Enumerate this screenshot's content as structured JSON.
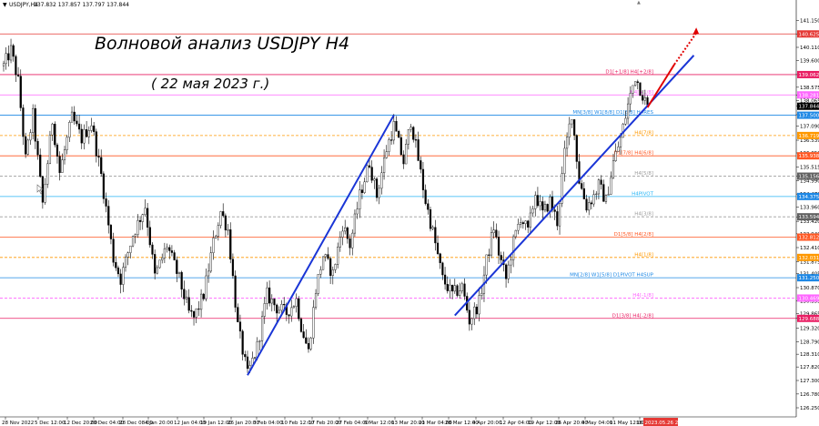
{
  "header": {
    "symbol_label": "USDJPY,H4",
    "ohlc": "137.832 137.857 137.797 137.844"
  },
  "annotation": {
    "title": "Волновой анализ USDJPY H4",
    "subtitle": "( 22 мая 2023 г.)"
  },
  "chart_data": {
    "type": "candlestick",
    "symbol": "USDJPY",
    "timeframe": "H4",
    "ylim": [
      126.25,
      141.65
    ],
    "y_ticks": [
      "141.150",
      "140.625",
      "140.110",
      "139.600",
      "139.062",
      "138.575",
      "138.281",
      "138.065",
      "137.844",
      "137.520",
      "137.090",
      "136.539",
      "136.050",
      "135.515",
      "135.156",
      "134.990",
      "134.470",
      "133.960",
      "133.584",
      "133.420",
      "132.940",
      "132.410",
      "131.875",
      "131.405",
      "130.870",
      "130.355",
      "129.865",
      "129.688",
      "129.320",
      "128.790",
      "128.310",
      "127.820",
      "127.300",
      "126.780",
      "126.250"
    ],
    "x_ticks": [
      "28 Nov 2022",
      "5 Dec 12:00",
      "12 Dec 20:00",
      "20 Dec 04:00",
      "28 Dec 08:00",
      "4 Jan 20:00",
      "12 Jan 04:00",
      "19 Jan 12:00",
      "26 Jan 20:00",
      "3 Feb 04:00",
      "10 Feb 12:00",
      "17 Feb 20:00",
      "27 Feb 04:00",
      "6 Mar 12:00",
      "13 Mar 20:00",
      "21 Mar 04:00",
      "28 Mar 12:00",
      "4 Apr 20:00",
      "12 Apr 04:00",
      "19 Apr 12:00",
      "26 Apr 20:00",
      "4 May 04:00",
      "11 May 12:00",
      "18 May 20:00",
      "2023.05.26 20:00"
    ],
    "current_price": "137.844",
    "price_path": [
      [
        0,
        139.4
      ],
      [
        3,
        140.0
      ],
      [
        6,
        138.8
      ],
      [
        9,
        135.8
      ],
      [
        12,
        137.5
      ],
      [
        16,
        134.1
      ],
      [
        20,
        137.3
      ],
      [
        23,
        135.3
      ],
      [
        28,
        137.4
      ],
      [
        32,
        136.6
      ],
      [
        36,
        137.2
      ],
      [
        40,
        135.2
      ],
      [
        45,
        132.0
      ],
      [
        48,
        131.2
      ],
      [
        53,
        132.9
      ],
      [
        58,
        134.0
      ],
      [
        62,
        131.3
      ],
      [
        67,
        132.5
      ],
      [
        72,
        131.2
      ],
      [
        76,
        129.9
      ],
      [
        78,
        129.7
      ],
      [
        82,
        130.6
      ],
      [
        86,
        132.6
      ],
      [
        89,
        133.8
      ],
      [
        92,
        133.1
      ],
      [
        96,
        129.4
      ],
      [
        100,
        127.5
      ],
      [
        104,
        128.6
      ],
      [
        108,
        130.6
      ],
      [
        112,
        130.1
      ],
      [
        116,
        129.9
      ],
      [
        120,
        130.4
      ],
      [
        122,
        129.4
      ],
      [
        125,
        128.4
      ],
      [
        128,
        130.8
      ],
      [
        131,
        132.1
      ],
      [
        135,
        131.4
      ],
      [
        139,
        133.3
      ],
      [
        142,
        132.5
      ],
      [
        146,
        134.4
      ],
      [
        150,
        135.7
      ],
      [
        153,
        134.4
      ],
      [
        157,
        136.2
      ],
      [
        160,
        137.1
      ],
      [
        164,
        135.7
      ],
      [
        167,
        137.3
      ],
      [
        170,
        135.8
      ],
      [
        173,
        134.2
      ],
      [
        176,
        133.0
      ],
      [
        180,
        131.2
      ],
      [
        184,
        130.6
      ],
      [
        188,
        130.9
      ],
      [
        191,
        129.6
      ],
      [
        195,
        130.3
      ],
      [
        198,
        131.9
      ],
      [
        201,
        133.2
      ],
      [
        203,
        132.2
      ],
      [
        206,
        131.2
      ],
      [
        209,
        132.6
      ],
      [
        212,
        133.6
      ],
      [
        215,
        133.0
      ],
      [
        218,
        134.5
      ],
      [
        221,
        133.7
      ],
      [
        224,
        134.2
      ],
      [
        227,
        133.4
      ],
      [
        230,
        136.0
      ],
      [
        233,
        137.6
      ],
      [
        236,
        135.0
      ],
      [
        239,
        134.0
      ],
      [
        242,
        134.4
      ],
      [
        244,
        134.8
      ],
      [
        247,
        134.2
      ],
      [
        250,
        135.7
      ],
      [
        253,
        136.6
      ],
      [
        256,
        137.9
      ],
      [
        259,
        139.0
      ],
      [
        262,
        138.3
      ],
      [
        264,
        137.8
      ]
    ],
    "wave_lines": [
      {
        "from": [
          100,
          127.5
        ],
        "to": [
          160,
          137.5
        ]
      },
      {
        "from": [
          185,
          129.8
        ],
        "to": [
          283,
          139.8
        ]
      }
    ],
    "forecast_arrow": {
      "from": [
        264,
        137.8
      ],
      "to": [
        284,
        140.8
      ]
    },
    "levels": [
      {
        "price": 140.625,
        "label": "",
        "color": "#e53935",
        "style": "solid",
        "tag": "140.625",
        "tag_bg": "#e53935"
      },
      {
        "price": 139.062,
        "label": "D1[+1/8] H4[+2/8]",
        "color": "#e91e63",
        "style": "solid",
        "tag": "139.062",
        "tag_bg": "#e91e63"
      },
      {
        "price": 138.281,
        "label": "H4[+1/8]",
        "color": "#ff66ff",
        "style": "solid",
        "tag": "138.281",
        "tag_bg": "#ff66ff"
      },
      {
        "price": 137.5,
        "label": "MN[3/8] W1[8/8] D1[8/8] H4RES",
        "color": "#1e88e5",
        "style": "solid",
        "tag": "137.500",
        "tag_bg": "#1e88e5"
      },
      {
        "price": 136.719,
        "label": "H4[7/8]",
        "color": "#ff9800",
        "style": "dashed",
        "tag": "136.719",
        "tag_bg": "#ff9800"
      },
      {
        "price": 135.938,
        "label": "D1[7/8] H4[6/8]",
        "color": "#ff5722",
        "style": "solid",
        "tag": "135.938",
        "tag_bg": "#ff5722"
      },
      {
        "price": 135.156,
        "label": "H4[5/8]",
        "color": "#9e9e9e",
        "style": "dashed",
        "tag": "135.156",
        "tag_bg": "#616161"
      },
      {
        "price": 134.375,
        "label": "H4PIVOT",
        "color": "#29b6f6",
        "style": "solid",
        "tag": "134.375",
        "tag_bg": "#1e88e5"
      },
      {
        "price": 133.594,
        "label": "H4[3/8]",
        "color": "#9e9e9e",
        "style": "dashed",
        "tag": "133.594",
        "tag_bg": "#616161"
      },
      {
        "price": 132.812,
        "label": "D1[5/8] H4[2/8]",
        "color": "#ff5722",
        "style": "solid",
        "tag": "132.812",
        "tag_bg": "#ff5722"
      },
      {
        "price": 132.031,
        "label": "H4[1/8]",
        "color": "#ff9800",
        "style": "dashed",
        "tag": "132.031",
        "tag_bg": "#ff9800"
      },
      {
        "price": 131.25,
        "label": "MN[2/8] W1[5/8] D1PIVOT H4SUP",
        "color": "#1e88e5",
        "style": "solid",
        "tag": "131.250",
        "tag_bg": "#1e88e5"
      },
      {
        "price": 130.469,
        "label": "H4[-1/8]",
        "color": "#ff66ff",
        "style": "dashed",
        "tag": "130.469",
        "tag_bg": "#ff66ff"
      },
      {
        "price": 129.688,
        "label": "D1[3/8] H4[-2/8]",
        "color": "#e91e63",
        "style": "solid",
        "tag": "129.688",
        "tag_bg": "#e91e63"
      }
    ]
  },
  "colors": {
    "candle": "#000000",
    "wave": "#1a35d6",
    "forecast": "#e00000",
    "grid": "#d8d8d8",
    "date_tag_bg": "#e53935"
  }
}
